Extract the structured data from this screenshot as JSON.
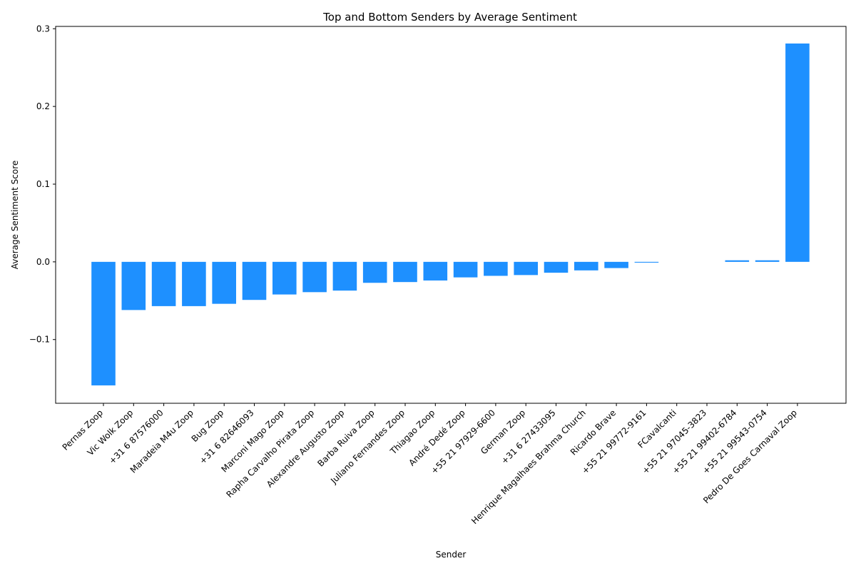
{
  "chart_data": {
    "type": "bar",
    "title": "Top and Bottom Senders by Average Sentiment",
    "xlabel": "Sender",
    "ylabel": "Average Sentiment Score",
    "ylim": [
      -0.182,
      0.303
    ],
    "yticks": [
      -0.1,
      0.0,
      0.1,
      0.2,
      0.3
    ],
    "ytick_labels": [
      "−0.1",
      "0.0",
      "0.1",
      "0.2",
      "0.3"
    ],
    "bar_color": "#1e90ff",
    "grid": false,
    "legend": "none",
    "categories": [
      "Pernas Zoop",
      "Vic Wolk Zoop",
      "+31 6 87576000",
      "Maradeia M4u Zoop",
      "Bug Zoop",
      "+31 6 82646093",
      "Marconi Mago Zoop",
      "Rapha Carvalho Pirata Zoop",
      "Alexandre Augusto Zoop",
      "Barba Ruiva Zoop",
      "Juliano Fernandes Zoop",
      "Thiagao Zoop",
      "André Dedé Zoop",
      "+55 21 97929-6600",
      "German Zoop",
      "+31 6 27433095",
      "Henrique Magalhaes Brahma Church",
      "Ricardo Brave",
      "+55 21 99772-9161",
      "FCavalcanti",
      "+55 21 97045-3823",
      "+55 21 99402-6784",
      "+55 21 99543-0754",
      "Pedro De Goes Carnaval Zoop"
    ],
    "values": [
      -0.159,
      -0.062,
      -0.057,
      -0.057,
      -0.054,
      -0.049,
      -0.042,
      -0.039,
      -0.037,
      -0.027,
      -0.026,
      -0.024,
      -0.02,
      -0.018,
      -0.017,
      -0.014,
      -0.011,
      -0.008,
      -0.001,
      0.0,
      0.0,
      0.002,
      0.002,
      0.281
    ]
  }
}
